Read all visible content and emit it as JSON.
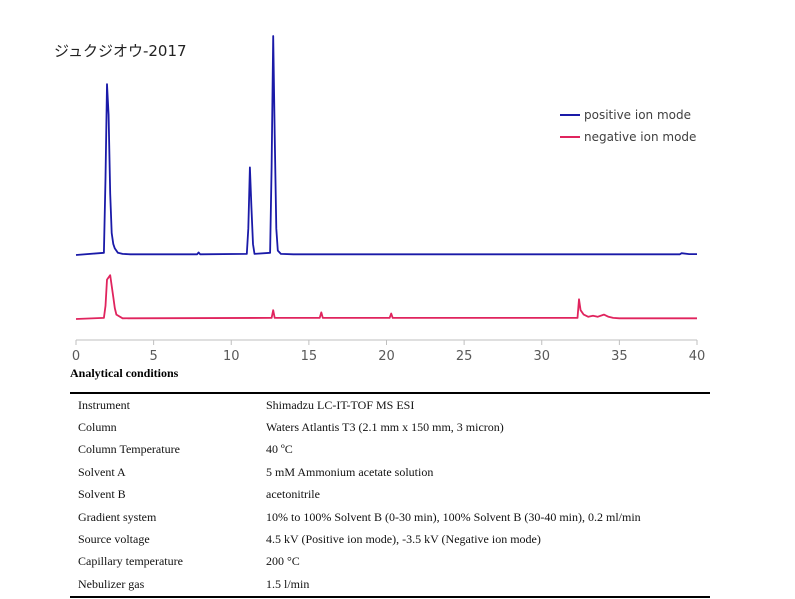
{
  "title": "ジュクジオウ-2017",
  "chart_data": {
    "type": "line",
    "xlim": [
      0,
      40
    ],
    "xticks": [
      0,
      5,
      10,
      15,
      20,
      25,
      30,
      35,
      40
    ],
    "legend_position": "top-right",
    "series": [
      {
        "name": "positive ion mode",
        "color": "#1a1aa8",
        "x": [
          0,
          1.8,
          1.9,
          2.0,
          2.1,
          2.2,
          2.3,
          2.4,
          2.5,
          2.7,
          3.0,
          3.5,
          7.8,
          7.9,
          8.0,
          11.0,
          11.1,
          11.2,
          11.3,
          11.4,
          11.5,
          12.5,
          12.6,
          12.7,
          12.8,
          12.9,
          13.0,
          13.2,
          14.0,
          23.0,
          38.9,
          39.0,
          39.5,
          40.0
        ],
        "y": [
          0,
          0.01,
          0.35,
          0.78,
          0.64,
          0.28,
          0.1,
          0.05,
          0.03,
          0.01,
          0.005,
          0.003,
          0.003,
          0.012,
          0.003,
          0.005,
          0.12,
          0.4,
          0.22,
          0.05,
          0.005,
          0.01,
          0.4,
          1.0,
          0.55,
          0.12,
          0.02,
          0.005,
          0.003,
          0.003,
          0.003,
          0.008,
          0.004,
          0.004
        ]
      },
      {
        "name": "negative ion mode",
        "color": "#e0245e",
        "x": [
          0,
          1.8,
          1.9,
          2.0,
          2.2,
          2.4,
          2.5,
          2.6,
          3.0,
          12.6,
          12.7,
          12.8,
          15.7,
          15.8,
          15.9,
          20.2,
          20.3,
          20.4,
          32.3,
          32.4,
          32.5,
          32.7,
          33.0,
          33.3,
          33.6,
          34.0,
          34.3,
          34.6,
          35.0,
          40.0
        ],
        "y": [
          0,
          0.005,
          0.06,
          0.18,
          0.2,
          0.1,
          0.05,
          0.02,
          0.003,
          0.005,
          0.04,
          0.005,
          0.005,
          0.03,
          0.005,
          0.005,
          0.025,
          0.005,
          0.005,
          0.09,
          0.04,
          0.02,
          0.01,
          0.015,
          0.01,
          0.02,
          0.01,
          0.005,
          0.003,
          0.003
        ]
      }
    ]
  },
  "conditions": {
    "heading": "Analytical conditions",
    "rows": [
      {
        "label": "Instrument",
        "value": "Shimadzu LC-IT-TOF MS ESI"
      },
      {
        "label": "Column",
        "value": "Waters Atlantis T3 (2.1 mm x 150 mm, 3 micron)"
      },
      {
        "label": "Column Temperature",
        "value": "40 ºC"
      },
      {
        "label": "Solvent A",
        "value": "5 mM Ammonium acetate solution"
      },
      {
        "label": "Solvent B",
        "value": "acetonitrile"
      },
      {
        "label": "Gradient system",
        "value": "10% to 100% Solvent B (0-30 min), 100% Solvent B (30-40 min), 0.2 ml/min"
      },
      {
        "label": "Source voltage",
        "value": "4.5 kV (Positive ion mode), -3.5 kV (Negative ion mode)"
      },
      {
        "label": "Capillary temperature",
        "value": "200 °C"
      },
      {
        "label": "Nebulizer gas",
        "value": "1.5 l/min"
      }
    ]
  }
}
